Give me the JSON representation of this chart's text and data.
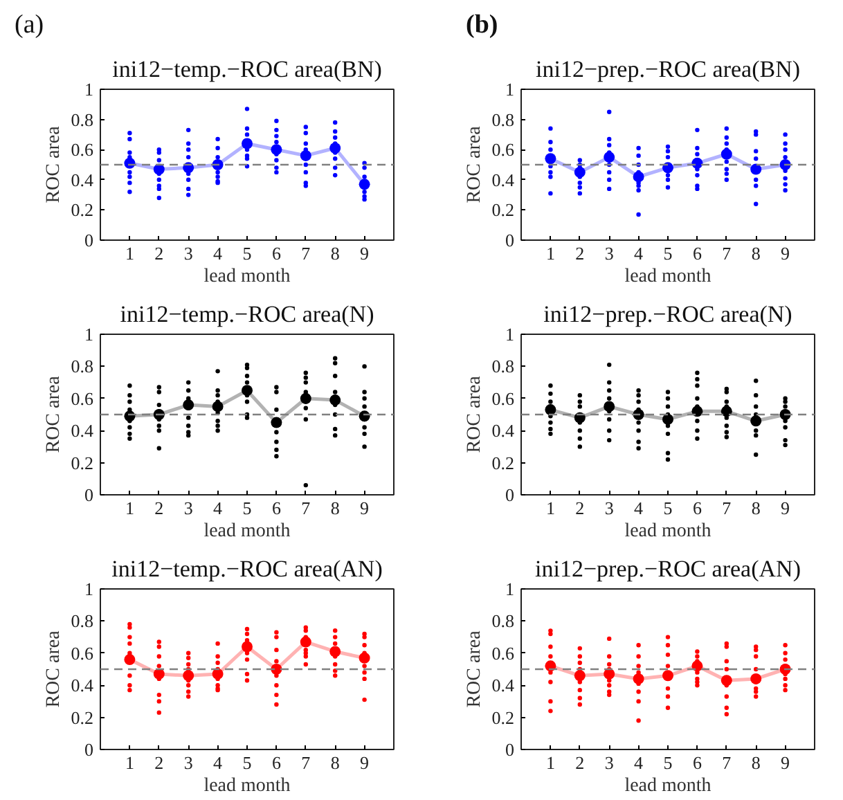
{
  "chart_data": [
    {
      "type": "line",
      "title": "ini12−temp.−ROC area(BN)",
      "xlabel": "lead month",
      "ylabel": "ROC area",
      "annotations": [
        "(a)"
      ],
      "x": [
        1,
        2,
        3,
        4,
        5,
        6,
        7,
        8,
        9
      ],
      "xlim": [
        0,
        10
      ],
      "xticks": [
        1,
        2,
        3,
        4,
        5,
        6,
        7,
        8,
        9
      ],
      "ylim": [
        0,
        1
      ],
      "yticks": [
        0,
        0.2,
        0.4,
        0.6,
        0.8,
        1
      ],
      "marker": "circle",
      "ref_lines": [
        {
          "axis": "y",
          "value": 0.5,
          "color": "#808080",
          "line_style": "dashed"
        }
      ],
      "series": [
        {
          "type": "scatter",
          "color": "#0000ff",
          "x": [
            1,
            1,
            1,
            1,
            1,
            1,
            1,
            1,
            2,
            2,
            2,
            2,
            2,
            2,
            2,
            2,
            3,
            3,
            3,
            3,
            3,
            3,
            3,
            3,
            4,
            4,
            4,
            4,
            4,
            4,
            4,
            5,
            5,
            5,
            5,
            5,
            5,
            5,
            6,
            6,
            6,
            6,
            6,
            6,
            6,
            6,
            7,
            7,
            7,
            7,
            7,
            7,
            7,
            7,
            8,
            8,
            8,
            8,
            8,
            8,
            8,
            8,
            9,
            9,
            9,
            9,
            9,
            9
          ],
          "values": [
            0.71,
            0.67,
            0.58,
            0.55,
            0.45,
            0.42,
            0.38,
            0.32,
            0.6,
            0.58,
            0.53,
            0.44,
            0.4,
            0.36,
            0.34,
            0.28,
            0.73,
            0.64,
            0.6,
            0.55,
            0.44,
            0.4,
            0.34,
            0.3,
            0.67,
            0.61,
            0.55,
            0.45,
            0.42,
            0.39,
            0.38,
            0.87,
            0.74,
            0.7,
            0.6,
            0.56,
            0.54,
            0.49,
            0.79,
            0.73,
            0.69,
            0.65,
            0.57,
            0.53,
            0.48,
            0.45,
            0.75,
            0.71,
            0.64,
            0.6,
            0.5,
            0.45,
            0.38,
            0.36,
            0.78,
            0.72,
            0.68,
            0.64,
            0.58,
            0.54,
            0.48,
            0.43,
            0.51,
            0.48,
            0.42,
            0.32,
            0.29,
            0.27
          ]
        },
        {
          "color": "#0000ff",
          "values": [
            0.51,
            0.47,
            0.48,
            0.5,
            0.64,
            0.6,
            0.56,
            0.61,
            0.37
          ]
        }
      ]
    },
    {
      "type": "line",
      "title": "ini12−prep.−ROC area(BN)",
      "xlabel": "lead month",
      "ylabel": "ROC area",
      "annotations": [
        "(b)"
      ],
      "x": [
        1,
        2,
        3,
        4,
        5,
        6,
        7,
        8,
        9
      ],
      "xlim": [
        0,
        10
      ],
      "xticks": [
        1,
        2,
        3,
        4,
        5,
        6,
        7,
        8,
        9
      ],
      "ylim": [
        0,
        1
      ],
      "yticks": [
        0,
        0.2,
        0.4,
        0.6,
        0.8,
        1
      ],
      "marker": "circle",
      "ref_lines": [
        {
          "axis": "y",
          "value": 0.5,
          "color": "#808080",
          "line_style": "dashed"
        }
      ],
      "series": [
        {
          "type": "scatter",
          "color": "#0000ff",
          "x": [
            1,
            1,
            1,
            1,
            1,
            1,
            1,
            2,
            2,
            2,
            2,
            2,
            2,
            2,
            2,
            3,
            3,
            3,
            3,
            3,
            3,
            3,
            3,
            4,
            4,
            4,
            4,
            4,
            4,
            4,
            4,
            5,
            5,
            5,
            5,
            5,
            5,
            6,
            6,
            6,
            6,
            6,
            6,
            6,
            7,
            7,
            7,
            7,
            7,
            7,
            7,
            7,
            8,
            8,
            8,
            8,
            8,
            8,
            8,
            9,
            9,
            9,
            9,
            9,
            9,
            9,
            9
          ],
          "values": [
            0.74,
            0.65,
            0.6,
            0.49,
            0.45,
            0.42,
            0.31,
            0.53,
            0.5,
            0.48,
            0.45,
            0.42,
            0.38,
            0.35,
            0.31,
            0.85,
            0.67,
            0.63,
            0.58,
            0.5,
            0.45,
            0.4,
            0.34,
            0.61,
            0.56,
            0.5,
            0.45,
            0.38,
            0.36,
            0.33,
            0.17,
            0.62,
            0.59,
            0.55,
            0.43,
            0.4,
            0.35,
            0.73,
            0.61,
            0.57,
            0.47,
            0.43,
            0.36,
            0.34,
            0.74,
            0.68,
            0.64,
            0.6,
            0.52,
            0.47,
            0.44,
            0.4,
            0.72,
            0.7,
            0.59,
            0.54,
            0.4,
            0.36,
            0.24,
            0.7,
            0.64,
            0.6,
            0.55,
            0.46,
            0.41,
            0.37,
            0.33
          ]
        },
        {
          "color": "#0000ff",
          "values": [
            0.54,
            0.45,
            0.55,
            0.42,
            0.48,
            0.51,
            0.57,
            0.47,
            0.5
          ]
        }
      ]
    },
    {
      "type": "line",
      "title": "ini12−temp.−ROC area(N)",
      "xlabel": "lead month",
      "ylabel": "ROC area",
      "x": [
        1,
        2,
        3,
        4,
        5,
        6,
        7,
        8,
        9
      ],
      "xlim": [
        0,
        10
      ],
      "xticks": [
        1,
        2,
        3,
        4,
        5,
        6,
        7,
        8,
        9
      ],
      "ylim": [
        0,
        1
      ],
      "yticks": [
        0,
        0.2,
        0.4,
        0.6,
        0.8,
        1
      ],
      "marker": "circle",
      "ref_lines": [
        {
          "axis": "y",
          "value": 0.5,
          "color": "#808080",
          "line_style": "dashed"
        }
      ],
      "series": [
        {
          "type": "scatter",
          "color": "#000000",
          "x": [
            1,
            1,
            1,
            1,
            1,
            1,
            1,
            1,
            2,
            2,
            2,
            2,
            2,
            2,
            2,
            2,
            3,
            3,
            3,
            3,
            3,
            3,
            3,
            3,
            4,
            4,
            4,
            4,
            4,
            4,
            4,
            4,
            5,
            5,
            5,
            5,
            5,
            5,
            5,
            5,
            6,
            6,
            6,
            6,
            6,
            6,
            6,
            6,
            7,
            7,
            7,
            7,
            7,
            7,
            7,
            7,
            8,
            8,
            8,
            8,
            8,
            8,
            8,
            8,
            9,
            9,
            9,
            9,
            9,
            9,
            9,
            9
          ],
          "values": [
            0.68,
            0.62,
            0.58,
            0.53,
            0.46,
            0.42,
            0.38,
            0.35,
            0.67,
            0.64,
            0.56,
            0.52,
            0.47,
            0.43,
            0.4,
            0.29,
            0.7,
            0.65,
            0.6,
            0.54,
            0.48,
            0.43,
            0.39,
            0.37,
            0.77,
            0.65,
            0.62,
            0.58,
            0.51,
            0.46,
            0.43,
            0.4,
            0.81,
            0.79,
            0.74,
            0.7,
            0.62,
            0.58,
            0.5,
            0.48,
            0.67,
            0.64,
            0.53,
            0.45,
            0.39,
            0.33,
            0.28,
            0.24,
            0.76,
            0.73,
            0.7,
            0.64,
            0.58,
            0.54,
            0.47,
            0.06,
            0.85,
            0.82,
            0.74,
            0.64,
            0.56,
            0.5,
            0.41,
            0.37,
            0.8,
            0.64,
            0.6,
            0.55,
            0.47,
            0.42,
            0.38,
            0.3
          ]
        },
        {
          "color": "#000000",
          "values": [
            0.49,
            0.5,
            0.56,
            0.55,
            0.65,
            0.45,
            0.6,
            0.59,
            0.49
          ]
        }
      ]
    },
    {
      "type": "line",
      "title": "ini12−prep.−ROC area(N)",
      "xlabel": "lead month",
      "ylabel": "ROC area",
      "x": [
        1,
        2,
        3,
        4,
        5,
        6,
        7,
        8,
        9
      ],
      "xlim": [
        0,
        10
      ],
      "xticks": [
        1,
        2,
        3,
        4,
        5,
        6,
        7,
        8,
        9
      ],
      "ylim": [
        0,
        1
      ],
      "yticks": [
        0,
        0.2,
        0.4,
        0.6,
        0.8,
        1
      ],
      "marker": "circle",
      "ref_lines": [
        {
          "axis": "y",
          "value": 0.5,
          "color": "#808080",
          "line_style": "dashed"
        }
      ],
      "series": [
        {
          "type": "scatter",
          "color": "#000000",
          "x": [
            1,
            1,
            1,
            1,
            1,
            1,
            1,
            1,
            2,
            2,
            2,
            2,
            2,
            2,
            2,
            2,
            3,
            3,
            3,
            3,
            3,
            3,
            3,
            3,
            4,
            4,
            4,
            4,
            4,
            4,
            4,
            4,
            5,
            5,
            5,
            5,
            5,
            5,
            5,
            5,
            6,
            6,
            6,
            6,
            6,
            6,
            6,
            6,
            7,
            7,
            7,
            7,
            7,
            7,
            7,
            7,
            8,
            8,
            8,
            8,
            8,
            8,
            8,
            8,
            9,
            9,
            9,
            9,
            9,
            9,
            9,
            9
          ],
          "values": [
            0.68,
            0.63,
            0.58,
            0.55,
            0.49,
            0.45,
            0.41,
            0.38,
            0.62,
            0.58,
            0.55,
            0.5,
            0.45,
            0.4,
            0.35,
            0.3,
            0.81,
            0.7,
            0.65,
            0.6,
            0.52,
            0.47,
            0.4,
            0.34,
            0.65,
            0.62,
            0.58,
            0.53,
            0.45,
            0.4,
            0.33,
            0.29,
            0.64,
            0.6,
            0.55,
            0.5,
            0.43,
            0.38,
            0.26,
            0.22,
            0.76,
            0.72,
            0.68,
            0.6,
            0.55,
            0.46,
            0.4,
            0.35,
            0.66,
            0.64,
            0.58,
            0.55,
            0.48,
            0.43,
            0.39,
            0.36,
            0.71,
            0.62,
            0.55,
            0.5,
            0.44,
            0.4,
            0.37,
            0.25,
            0.6,
            0.58,
            0.55,
            0.52,
            0.46,
            0.42,
            0.34,
            0.31
          ]
        },
        {
          "color": "#000000",
          "values": [
            0.53,
            0.48,
            0.55,
            0.5,
            0.47,
            0.52,
            0.52,
            0.46,
            0.5
          ]
        }
      ]
    },
    {
      "type": "line",
      "title": "ini12−temp.−ROC area(AN)",
      "xlabel": "lead month",
      "ylabel": "ROC area",
      "x": [
        1,
        2,
        3,
        4,
        5,
        6,
        7,
        8,
        9
      ],
      "xlim": [
        0,
        10
      ],
      "xticks": [
        1,
        2,
        3,
        4,
        5,
        6,
        7,
        8,
        9
      ],
      "ylim": [
        0,
        1
      ],
      "yticks": [
        0,
        0.2,
        0.4,
        0.6,
        0.8,
        1
      ],
      "marker": "circle",
      "ref_lines": [
        {
          "axis": "y",
          "value": 0.5,
          "color": "#808080",
          "line_style": "dashed"
        }
      ],
      "series": [
        {
          "type": "scatter",
          "color": "#ff0000",
          "x": [
            1,
            1,
            1,
            1,
            1,
            1,
            1,
            1,
            2,
            2,
            2,
            2,
            2,
            2,
            2,
            2,
            3,
            3,
            3,
            3,
            3,
            3,
            3,
            3,
            4,
            4,
            4,
            4,
            4,
            4,
            4,
            4,
            5,
            5,
            5,
            5,
            5,
            5,
            5,
            6,
            6,
            6,
            6,
            6,
            6,
            6,
            6,
            7,
            7,
            7,
            7,
            7,
            7,
            7,
            8,
            8,
            8,
            8,
            8,
            8,
            8,
            9,
            9,
            9,
            9,
            9,
            9,
            9,
            9
          ],
          "values": [
            0.78,
            0.76,
            0.7,
            0.66,
            0.6,
            0.46,
            0.4,
            0.37,
            0.67,
            0.64,
            0.58,
            0.52,
            0.44,
            0.34,
            0.3,
            0.23,
            0.6,
            0.57,
            0.53,
            0.5,
            0.43,
            0.4,
            0.36,
            0.33,
            0.66,
            0.58,
            0.54,
            0.5,
            0.44,
            0.4,
            0.38,
            0.37,
            0.75,
            0.72,
            0.68,
            0.6,
            0.56,
            0.47,
            0.43,
            0.73,
            0.7,
            0.62,
            0.55,
            0.46,
            0.4,
            0.34,
            0.28,
            0.76,
            0.74,
            0.7,
            0.62,
            0.6,
            0.58,
            0.53,
            0.74,
            0.7,
            0.66,
            0.58,
            0.53,
            0.49,
            0.46,
            0.72,
            0.7,
            0.65,
            0.6,
            0.52,
            0.48,
            0.44,
            0.31
          ]
        },
        {
          "color": "#ff0000",
          "values": [
            0.56,
            0.47,
            0.46,
            0.47,
            0.64,
            0.5,
            0.67,
            0.61,
            0.57
          ]
        }
      ]
    },
    {
      "type": "line",
      "title": "ini12−prep.−ROC area(AN)",
      "xlabel": "lead month",
      "ylabel": "ROC area",
      "x": [
        1,
        2,
        3,
        4,
        5,
        6,
        7,
        8,
        9
      ],
      "xlim": [
        0,
        10
      ],
      "xticks": [
        1,
        2,
        3,
        4,
        5,
        6,
        7,
        8,
        9
      ],
      "ylim": [
        0,
        1
      ],
      "yticks": [
        0,
        0.2,
        0.4,
        0.6,
        0.8,
        1
      ],
      "marker": "circle",
      "ref_lines": [
        {
          "axis": "y",
          "value": 0.5,
          "color": "#808080",
          "line_style": "dashed"
        }
      ],
      "series": [
        {
          "type": "scatter",
          "color": "#ff0000",
          "x": [
            1,
            1,
            1,
            1,
            1,
            1,
            1,
            1,
            2,
            2,
            2,
            2,
            2,
            2,
            2,
            2,
            3,
            3,
            3,
            3,
            3,
            3,
            3,
            3,
            4,
            4,
            4,
            4,
            4,
            4,
            4,
            4,
            5,
            5,
            5,
            5,
            5,
            5,
            5,
            6,
            6,
            6,
            6,
            6,
            6,
            6,
            7,
            7,
            7,
            7,
            7,
            7,
            7,
            7,
            8,
            8,
            8,
            8,
            8,
            8,
            8,
            8,
            9,
            9,
            9,
            9,
            9,
            9,
            9,
            9
          ],
          "values": [
            0.74,
            0.72,
            0.64,
            0.58,
            0.48,
            0.42,
            0.3,
            0.24,
            0.63,
            0.58,
            0.54,
            0.5,
            0.42,
            0.37,
            0.32,
            0.28,
            0.69,
            0.58,
            0.53,
            0.5,
            0.43,
            0.4,
            0.36,
            0.34,
            0.65,
            0.58,
            0.52,
            0.48,
            0.41,
            0.36,
            0.3,
            0.18,
            0.7,
            0.65,
            0.59,
            0.52,
            0.38,
            0.33,
            0.26,
            0.61,
            0.58,
            0.55,
            0.48,
            0.44,
            0.42,
            0.4,
            0.66,
            0.64,
            0.55,
            0.5,
            0.4,
            0.33,
            0.26,
            0.22,
            0.64,
            0.62,
            0.58,
            0.5,
            0.42,
            0.38,
            0.36,
            0.33,
            0.65,
            0.6,
            0.56,
            0.52,
            0.47,
            0.44,
            0.4,
            0.37
          ]
        },
        {
          "color": "#ff0000",
          "values": [
            0.52,
            0.46,
            0.47,
            0.44,
            0.46,
            0.52,
            0.43,
            0.44,
            0.5
          ]
        }
      ]
    }
  ]
}
